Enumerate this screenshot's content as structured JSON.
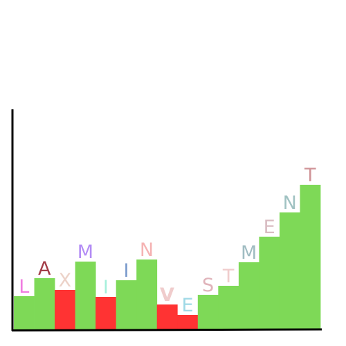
{
  "chart_data": {
    "type": "bar",
    "categories": [
      "L",
      "A",
      "X",
      "M",
      "I",
      "I",
      "N",
      "V",
      "E",
      "S",
      "T",
      "M",
      "E",
      "N",
      "T"
    ],
    "values": [
      48,
      74,
      57,
      98,
      47,
      71,
      101,
      36,
      21,
      50,
      63,
      97,
      134,
      169,
      209
    ],
    "bar_colors": [
      "#7ed957",
      "#7ed957",
      "#ff3333",
      "#7ed957",
      "#ff3333",
      "#7ed957",
      "#7ed957",
      "#ff3333",
      "#ff3333",
      "#7ed957",
      "#7ed957",
      "#7ed957",
      "#7ed957",
      "#7ed957",
      "#7ed957"
    ],
    "label_colors": [
      "#f07ce0",
      "#a33d48",
      "#ecd2c8",
      "#b38cf5",
      "#a5f0dc",
      "#7a9acc",
      "#f5b3b3",
      "#f0cccc",
      "#9fd9e6",
      "#e0b3ba",
      "#f0cccc",
      "#a0bcc2",
      "#d9bcc2",
      "#a0c2c2",
      "#d09498"
    ],
    "label_weights": [
      "normal",
      "normal",
      "normal",
      "normal",
      "normal",
      "normal",
      "normal",
      "bold",
      "normal",
      "normal",
      "normal",
      "normal",
      "normal",
      "normal",
      "normal"
    ],
    "ylim": [
      0,
      320
    ],
    "grid": false,
    "legend": "none",
    "title": "",
    "xlabel": "",
    "ylabel": ""
  }
}
